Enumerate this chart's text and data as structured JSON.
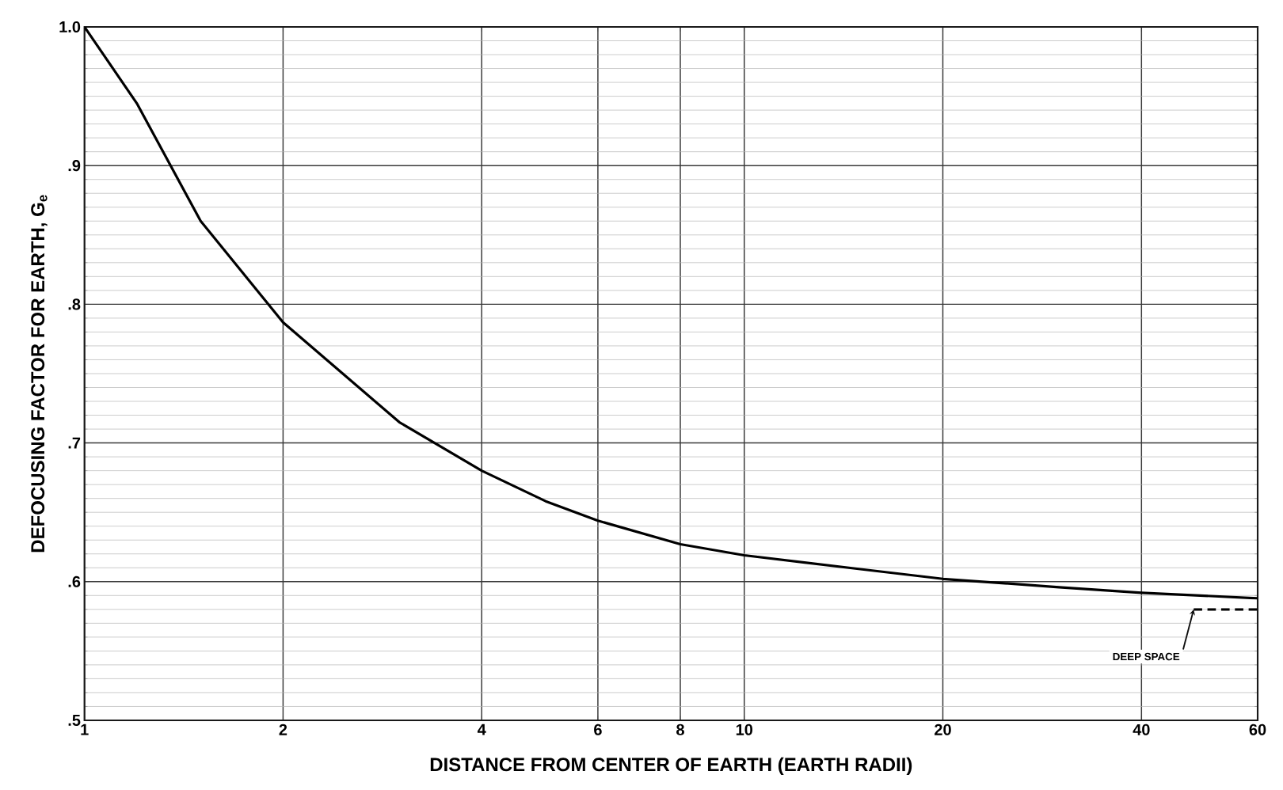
{
  "chart_data": {
    "type": "line",
    "xlabel": "DISTANCE FROM CENTER OF EARTH (EARTH RADII)",
    "ylabel": "DEFOCUSING FACTOR FOR EARTH, G$_{e}$",
    "series": [
      {
        "x": [
          1,
          1.2,
          1.5,
          2,
          3,
          4,
          5,
          6,
          8,
          10,
          15,
          20,
          30,
          40,
          60
        ],
        "values": [
          1.0,
          0.945,
          0.86,
          0.787,
          0.715,
          0.68,
          0.658,
          0.644,
          0.627,
          0.619,
          0.609,
          0.602,
          0.596,
          0.592,
          0.588
        ],
        "color": "#000000",
        "line_style": "solid"
      },
      {
        "x": [
          48,
          60
        ],
        "values": [
          0.58,
          0.58
        ],
        "color": "#000000",
        "line_style": "dashed"
      }
    ],
    "annotations": [
      {
        "text": "DEEP SPACE",
        "x": 48,
        "y": 0.58
      }
    ],
    "log": "x",
    "grid": true,
    "xlim": [
      1,
      60
    ],
    "ylim": [
      0.5,
      1.0
    ],
    "xticks": [
      1,
      2,
      4,
      6,
      8,
      10,
      20,
      40,
      60
    ],
    "yticks": [
      {
        "value": 0.5,
        "label": ".5"
      },
      {
        "value": 0.6,
        "label": ".6"
      },
      {
        "value": 0.7,
        "label": ".7"
      },
      {
        "value": 0.8,
        "label": ".8"
      },
      {
        "value": 0.9,
        "label": ".9"
      },
      {
        "value": 1.0,
        "label": "1.0"
      }
    ]
  }
}
